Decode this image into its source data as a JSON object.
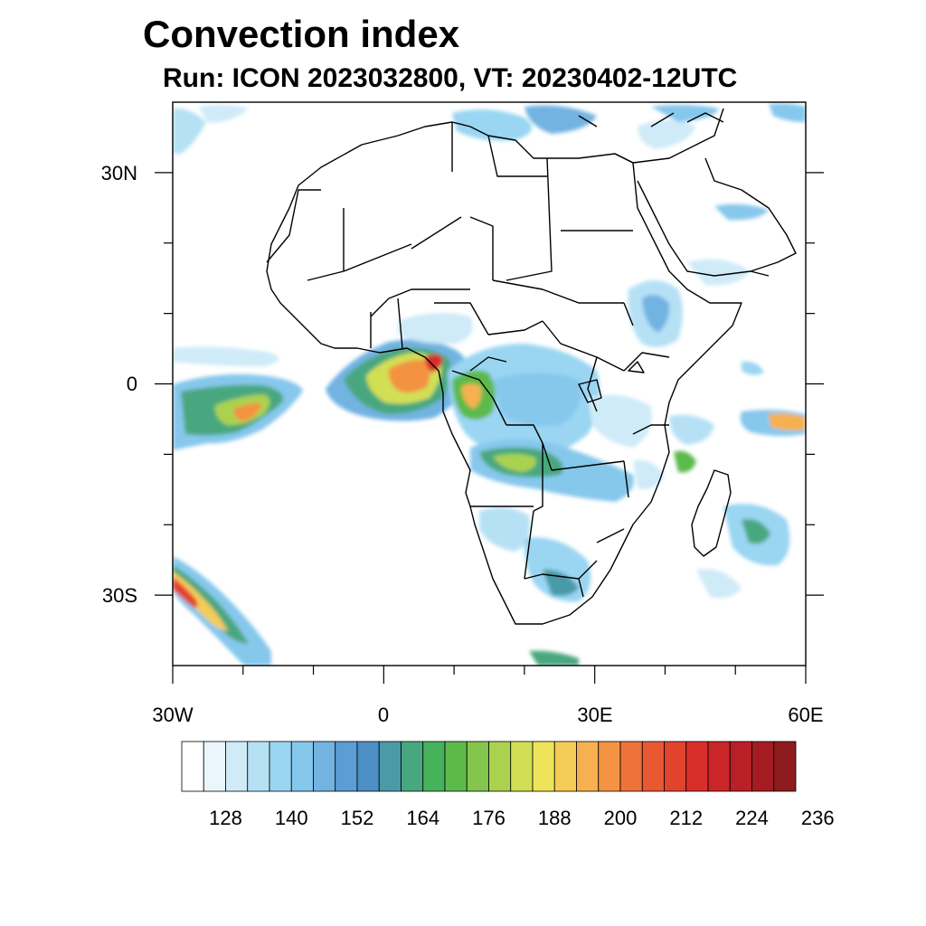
{
  "title": "Convection index",
  "subtitle": "Run: ICON 2023032800,  VT: 20230402-12UTC",
  "map": {
    "lon_range": [
      -30,
      60
    ],
    "lat_range": [
      -40,
      40
    ],
    "x_tick_labels": [
      {
        "lon": -30,
        "text": "30W"
      },
      {
        "lon": 0,
        "text": "0"
      },
      {
        "lon": 30,
        "text": "30E"
      },
      {
        "lon": 60,
        "text": "60E"
      }
    ],
    "y_tick_labels": [
      {
        "lat": 30,
        "text": "30N"
      },
      {
        "lat": 0,
        "text": "0"
      },
      {
        "lat": -30,
        "text": "30S"
      }
    ],
    "minor_x_ticks": [
      -20,
      -10,
      10,
      20,
      40,
      50
    ],
    "minor_y_ticks": [
      20,
      10,
      -10,
      -20
    ]
  },
  "colorbar": {
    "colors": [
      "#ffffff",
      "#eaf6fc",
      "#cfebf8",
      "#b6e1f5",
      "#9ad5f2",
      "#86c7ec",
      "#72b3e2",
      "#5b9dd4",
      "#4d8fc4",
      "#4a9aa7",
      "#48a77f",
      "#46b25c",
      "#5cba4b",
      "#84c54d",
      "#aad250",
      "#d2df55",
      "#eee45a",
      "#f6cc58",
      "#f7b04f",
      "#f39343",
      "#ee733a",
      "#e85832",
      "#e2432d",
      "#d82f2b",
      "#ca2629",
      "#b91f26",
      "#a41c22",
      "#8e1b1e"
    ],
    "labels": [
      "128",
      "140",
      "152",
      "164",
      "176",
      "188",
      "200",
      "212",
      "224",
      "236"
    ]
  }
}
